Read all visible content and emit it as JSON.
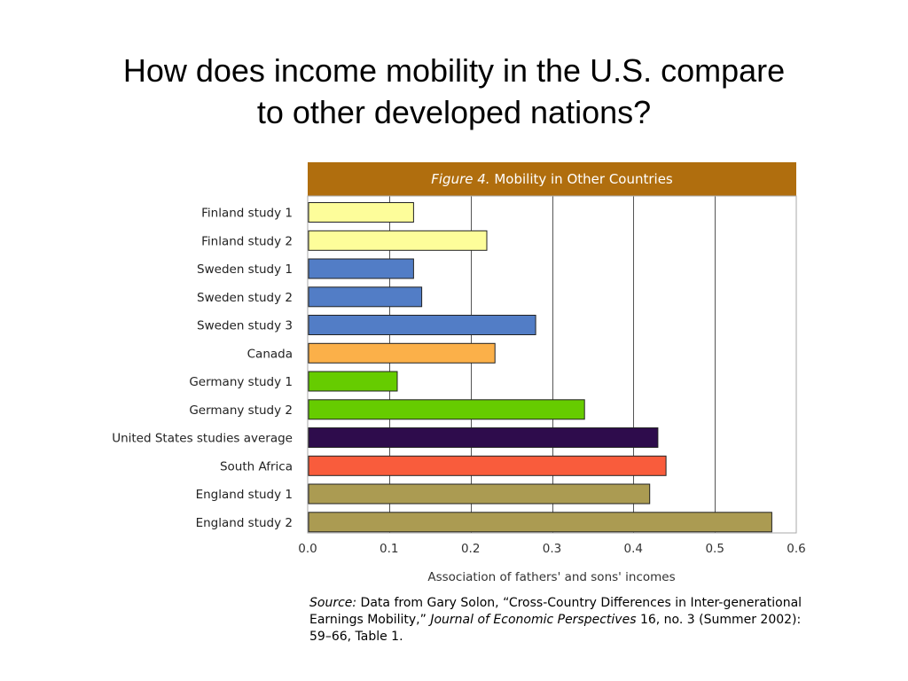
{
  "slide": {
    "title_line1": "How does income mobility in the U.S. compare",
    "title_line2": "to other developed nations?"
  },
  "figure": {
    "label": "Figure 4.",
    "title": "Mobility in Other Countries",
    "header_color": "#b06e0e"
  },
  "source": {
    "label": "Source:",
    "text_before": " Data from Gary Solon, “Cross-Country Differences in Inter-generational Earnings Mobility,” ",
    "journal": "Journal of Economic Perspectives",
    "text_after": " 16, no. 3 (Summer 2002): 59–66, Table 1."
  },
  "chart_data": {
    "type": "bar",
    "orientation": "horizontal",
    "title": "Mobility in Other Countries",
    "xlabel": "Association of fathers' and sons' incomes",
    "ylabel": "",
    "xlim": [
      0.0,
      0.6
    ],
    "xticks": [
      "0.0",
      "0.1",
      "0.2",
      "0.3",
      "0.4",
      "0.5",
      "0.6"
    ],
    "grid": "vertical",
    "legend": "none",
    "categories": [
      "Finland study 1",
      "Finland study 2",
      "Sweden study 1",
      "Sweden study 2",
      "Sweden study 3",
      "Canada",
      "Germany study 1",
      "Germany study 2",
      "United States studies average",
      "South Africa",
      "England study 1",
      "England study 2"
    ],
    "values": [
      0.13,
      0.22,
      0.13,
      0.14,
      0.28,
      0.23,
      0.11,
      0.34,
      0.43,
      0.44,
      0.42,
      0.57
    ],
    "colors": [
      "#fdfd9a",
      "#fdfd9a",
      "#527dc6",
      "#527dc6",
      "#527dc6",
      "#fbb049",
      "#66cc00",
      "#66cc00",
      "#2e0c4c",
      "#f95c3c",
      "#ab9b52",
      "#ab9b52"
    ]
  }
}
